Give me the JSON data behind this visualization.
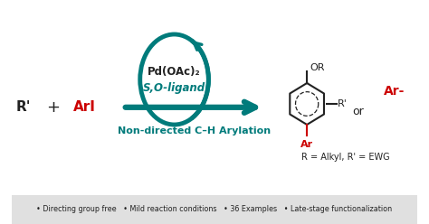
{
  "bg_color": "#ffffff",
  "footer_bg": "#e0e0e0",
  "teal": "#007b7b",
  "red": "#cc0000",
  "black": "#222222",
  "footer_text": "• Directing group free   • Mild reaction conditions   • 36 Examples   • Late-stage functionalization",
  "catalyst_line1": "Pd(OAc)₂",
  "catalyst_line2": "S,O-ligand",
  "nondirected": "Non-directed C–H Arylation",
  "reactant_left": "R'",
  "plus": "+",
  "aryl_iodide": "ArI",
  "or_label": "OR",
  "r_prime": "R'",
  "ar_label": "Ar",
  "ar2_label": "Ar-",
  "or_text": "or",
  "r_eq": "R = Alkyl, R' = EWG"
}
